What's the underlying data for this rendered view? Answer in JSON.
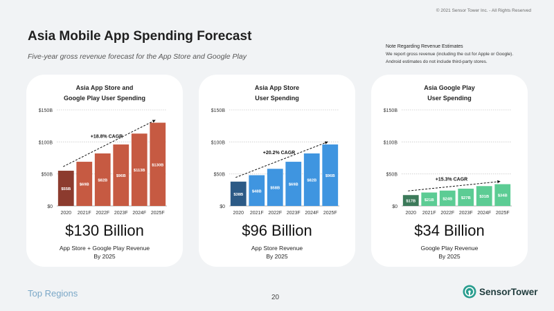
{
  "copyright": "© 2021 Sensor Tower Inc. - All Rights Reserved",
  "title": "Asia Mobile App Spending Forecast",
  "subtitle": "Five-year gross revenue forecast for the App Store and Google Play",
  "note": {
    "title": "Note Regarding Revenue Estimates",
    "line1": "We report gross revenue (including the cut for Apple or Google).",
    "line2": "Android estimates do not include third-party stores."
  },
  "footer": {
    "section": "Top Regions",
    "page": "20",
    "brand_a": "Sensor",
    "brand_b": "Tower"
  },
  "colors": {
    "combined": "#c65a42",
    "combined_first": "#8c3b2e",
    "appstore": "#3f95e0",
    "appstore_first": "#2c5a86",
    "googleplay": "#5ccc94",
    "googleplay_first": "#3c7a5a",
    "logo": "#2a9d8f"
  },
  "cards": [
    {
      "title_line1": "Asia App Store and",
      "title_line2": "Google Play User Spending",
      "big": "$130 Billion",
      "caption1": "App Store + Google Play Revenue",
      "caption2": "By 2025"
    },
    {
      "title_line1": "Asia App Store",
      "title_line2": "User Spending",
      "big": "$96 Billion",
      "caption1": "App Store Revenue",
      "caption2": "By 2025"
    },
    {
      "title_line1": "Asia Google Play",
      "title_line2": "User Spending",
      "big": "$34 Billion",
      "caption1": "Google Play Revenue",
      "caption2": "By 2025"
    }
  ],
  "chart_data": [
    {
      "type": "bar",
      "title": "Asia App Store and Google Play User Spending",
      "categories": [
        "2020",
        "2021F",
        "2022F",
        "2023F",
        "2024F",
        "2025F"
      ],
      "values": [
        55,
        69,
        82,
        96,
        113,
        130
      ],
      "labels": [
        "$55B",
        "$69B",
        "$82B",
        "$96B",
        "$113B",
        "$130B"
      ],
      "ylim": [
        0,
        150
      ],
      "yticks": [
        0,
        50,
        100,
        150
      ],
      "ytick_labels": [
        "$0",
        "$50B",
        "$100B",
        "$150B"
      ],
      "annotation": "+18.8% CAGR",
      "grid": true
    },
    {
      "type": "bar",
      "title": "Asia App Store User Spending",
      "categories": [
        "2020",
        "2021F",
        "2022F",
        "2023F",
        "2024F",
        "2025F"
      ],
      "values": [
        38,
        48,
        58,
        69,
        82,
        96
      ],
      "labels": [
        "$38B",
        "$48B",
        "$58B",
        "$69B",
        "$82B",
        "$96B"
      ],
      "ylim": [
        0,
        150
      ],
      "yticks": [
        0,
        50,
        100,
        150
      ],
      "ytick_labels": [
        "$0",
        "$50B",
        "$100B",
        "$150B"
      ],
      "annotation": "+20.2% CAGR",
      "grid": true
    },
    {
      "type": "bar",
      "title": "Asia Google Play User Spending",
      "categories": [
        "2020",
        "2021F",
        "2022F",
        "2023F",
        "2024F",
        "2025F"
      ],
      "values": [
        17,
        21,
        24,
        27,
        31,
        34
      ],
      "labels": [
        "$17B",
        "$21B",
        "$24B",
        "$27B",
        "$31B",
        "$34B"
      ],
      "ylim": [
        0,
        150
      ],
      "yticks": [
        0,
        50,
        100,
        150
      ],
      "ytick_labels": [
        "$0",
        "$50B",
        "$100B",
        "$150B"
      ],
      "annotation": "+15.3% CAGR",
      "grid": true
    }
  ]
}
